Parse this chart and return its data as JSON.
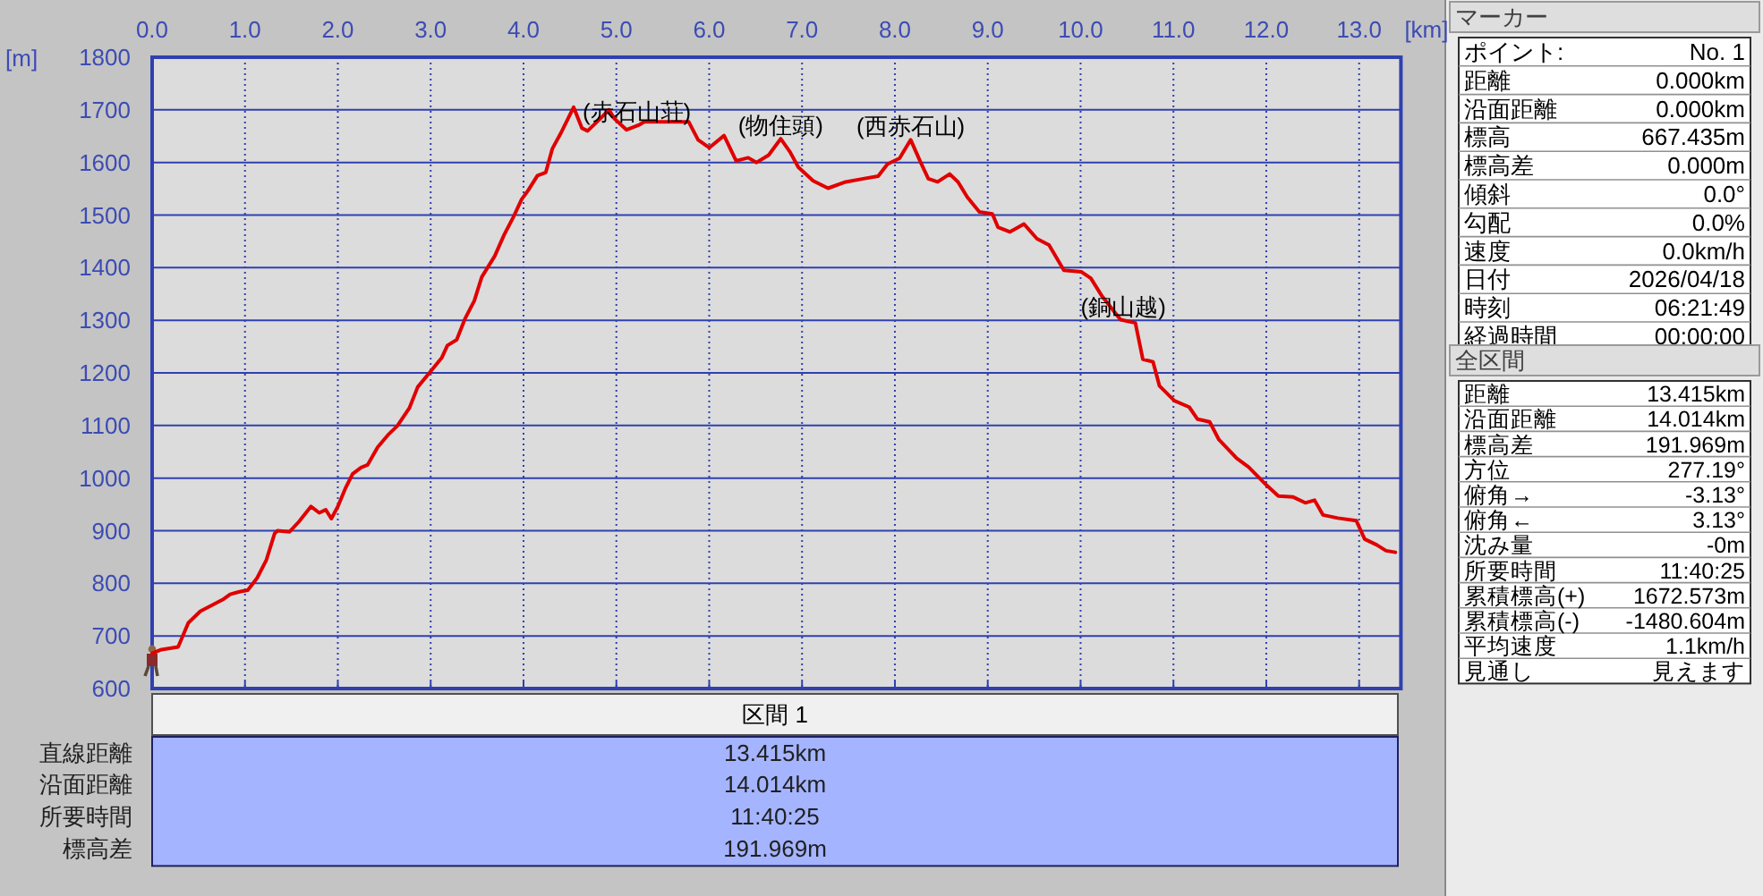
{
  "chart_data": [
    {
      "type": "line",
      "xlabel": "[km]",
      "ylabel": "[m]",
      "x": [
        0,
        0.1,
        0.28,
        0.39,
        0.52,
        0.65,
        0.77,
        0.84,
        0.94,
        1.03,
        1.13,
        1.23,
        1.32,
        1.35,
        1.48,
        1.58,
        1.71,
        1.8,
        1.87,
        1.93,
        2.0,
        2.08,
        2.16,
        2.25,
        2.32,
        2.43,
        2.54,
        2.64,
        2.77,
        2.86,
        2.99,
        3.12,
        3.18,
        3.28,
        3.37,
        3.47,
        3.55,
        3.63,
        3.69,
        3.79,
        3.89,
        3.98,
        4.05,
        4.15,
        4.24,
        4.31,
        4.4,
        4.54,
        4.63,
        4.69,
        4.79,
        4.92,
        4.98,
        5.11,
        5.24,
        5.3,
        5.43,
        5.56,
        5.78,
        5.88,
        6.0,
        6.16,
        6.29,
        6.42,
        6.51,
        6.64,
        6.77,
        6.87,
        6.96,
        7.12,
        7.28,
        7.47,
        7.66,
        7.82,
        7.92,
        8.05,
        8.17,
        8.27,
        8.36,
        8.46,
        8.59,
        8.68,
        8.78,
        8.91,
        9.05,
        9.11,
        9.24,
        9.39,
        9.53,
        9.66,
        9.82,
        10.01,
        10.11,
        10.23,
        10.43,
        10.59,
        10.67,
        10.78,
        10.85,
        11.01,
        11.17,
        11.26,
        11.39,
        11.49,
        11.68,
        11.81,
        12.0,
        12.13,
        12.29,
        12.42,
        12.52,
        12.61,
        12.77,
        12.97,
        13.06,
        13.19,
        13.29,
        13.39
      ],
      "values": [
        667,
        674,
        679,
        725,
        747,
        759,
        770,
        779,
        784,
        787,
        810,
        844,
        895,
        900,
        898,
        917,
        946,
        934,
        940,
        923,
        946,
        980,
        1008,
        1020,
        1025,
        1059,
        1082,
        1099,
        1133,
        1173,
        1201,
        1229,
        1252,
        1263,
        1303,
        1337,
        1382,
        1405,
        1422,
        1462,
        1496,
        1530,
        1547,
        1575,
        1581,
        1626,
        1655,
        1705,
        1665,
        1660,
        1677,
        1700,
        1683,
        1662,
        1671,
        1677,
        1677,
        1677,
        1677,
        1643,
        1628,
        1651,
        1603,
        1609,
        1600,
        1614,
        1645,
        1620,
        1591,
        1565,
        1551,
        1563,
        1569,
        1574,
        1597,
        1608,
        1643,
        1603,
        1569,
        1563,
        1578,
        1563,
        1534,
        1506,
        1502,
        1477,
        1468,
        1483,
        1455,
        1443,
        1395,
        1392,
        1380,
        1346,
        1301,
        1295,
        1226,
        1221,
        1175,
        1147,
        1135,
        1112,
        1107,
        1073,
        1038,
        1021,
        987,
        966,
        964,
        953,
        958,
        930,
        924,
        919,
        884,
        873,
        862,
        859
      ],
      "color": "#e00000",
      "xlim": [
        0,
        13.45
      ],
      "ylim": [
        600,
        1800
      ],
      "xticks": [
        {
          "value": 0,
          "label": "0.0"
        },
        {
          "value": 1,
          "label": "1.0"
        },
        {
          "value": 2,
          "label": "2.0"
        },
        {
          "value": 3,
          "label": "3.0"
        },
        {
          "value": 4,
          "label": "4.0"
        },
        {
          "value": 5,
          "label": "5.0"
        },
        {
          "value": 6,
          "label": "6.0"
        },
        {
          "value": 7,
          "label": "7.0"
        },
        {
          "value": 8,
          "label": "8.0"
        },
        {
          "value": 9,
          "label": "9.0"
        },
        {
          "value": 10,
          "label": "10.0"
        },
        {
          "value": 11,
          "label": "11.0"
        },
        {
          "value": 12,
          "label": "12.0"
        },
        {
          "value": 13,
          "label": "13.0"
        }
      ],
      "yticks": [
        600,
        700,
        800,
        900,
        1000,
        1100,
        1200,
        1300,
        1400,
        1500,
        1600,
        1700,
        1800
      ],
      "grid": true,
      "annotations": [
        {
          "text": "(赤石山荘)",
          "x": 5.22,
          "y": 1670
        },
        {
          "text": "(物住頭)",
          "x": 6.77,
          "y": 1645
        },
        {
          "text": "(西赤石山)",
          "x": 8.17,
          "y": 1643
        },
        {
          "text": "(銅山越)",
          "x": 10.46,
          "y": 1300
        }
      ]
    },
    {
      "type": "other",
      "title": "区間 1",
      "annotations": [
        "直線距離",
        "13.415km",
        "沿面距離",
        "14.014km",
        "所要時間",
        "11:40:25",
        "標高差",
        "191.969m"
      ]
    },
    {
      "type": "other",
      "title": "マーカー",
      "annotations": [
        "ポイント:",
        "No. 1",
        "距離",
        "0.000km",
        "沿面距離",
        "0.000km",
        "標高",
        "667.435m",
        "標高差",
        "0.000m",
        "傾斜",
        "0.0°",
        "勾配",
        "0.0%",
        "速度",
        "0.0km/h",
        "日付",
        "2026/04/18",
        "時刻",
        "06:21:49",
        "経過時間",
        "00:00:00"
      ]
    },
    {
      "type": "other",
      "title": "全区間",
      "annotations": [
        "距離",
        "13.415km",
        "沿面距離",
        "14.014km",
        "標高差",
        "191.969m",
        "方位",
        "277.19°",
        "俯角→",
        "-3.13°",
        "俯角←",
        "3.13°",
        "沈み量",
        "-0m",
        "所要時間",
        "11:40:25",
        "累積標高(+)",
        "1672.573m",
        "累積標高(-)",
        "-1480.604m",
        "平均速度",
        "1.1km/h",
        "見通し",
        "見えます"
      ]
    }
  ]
}
